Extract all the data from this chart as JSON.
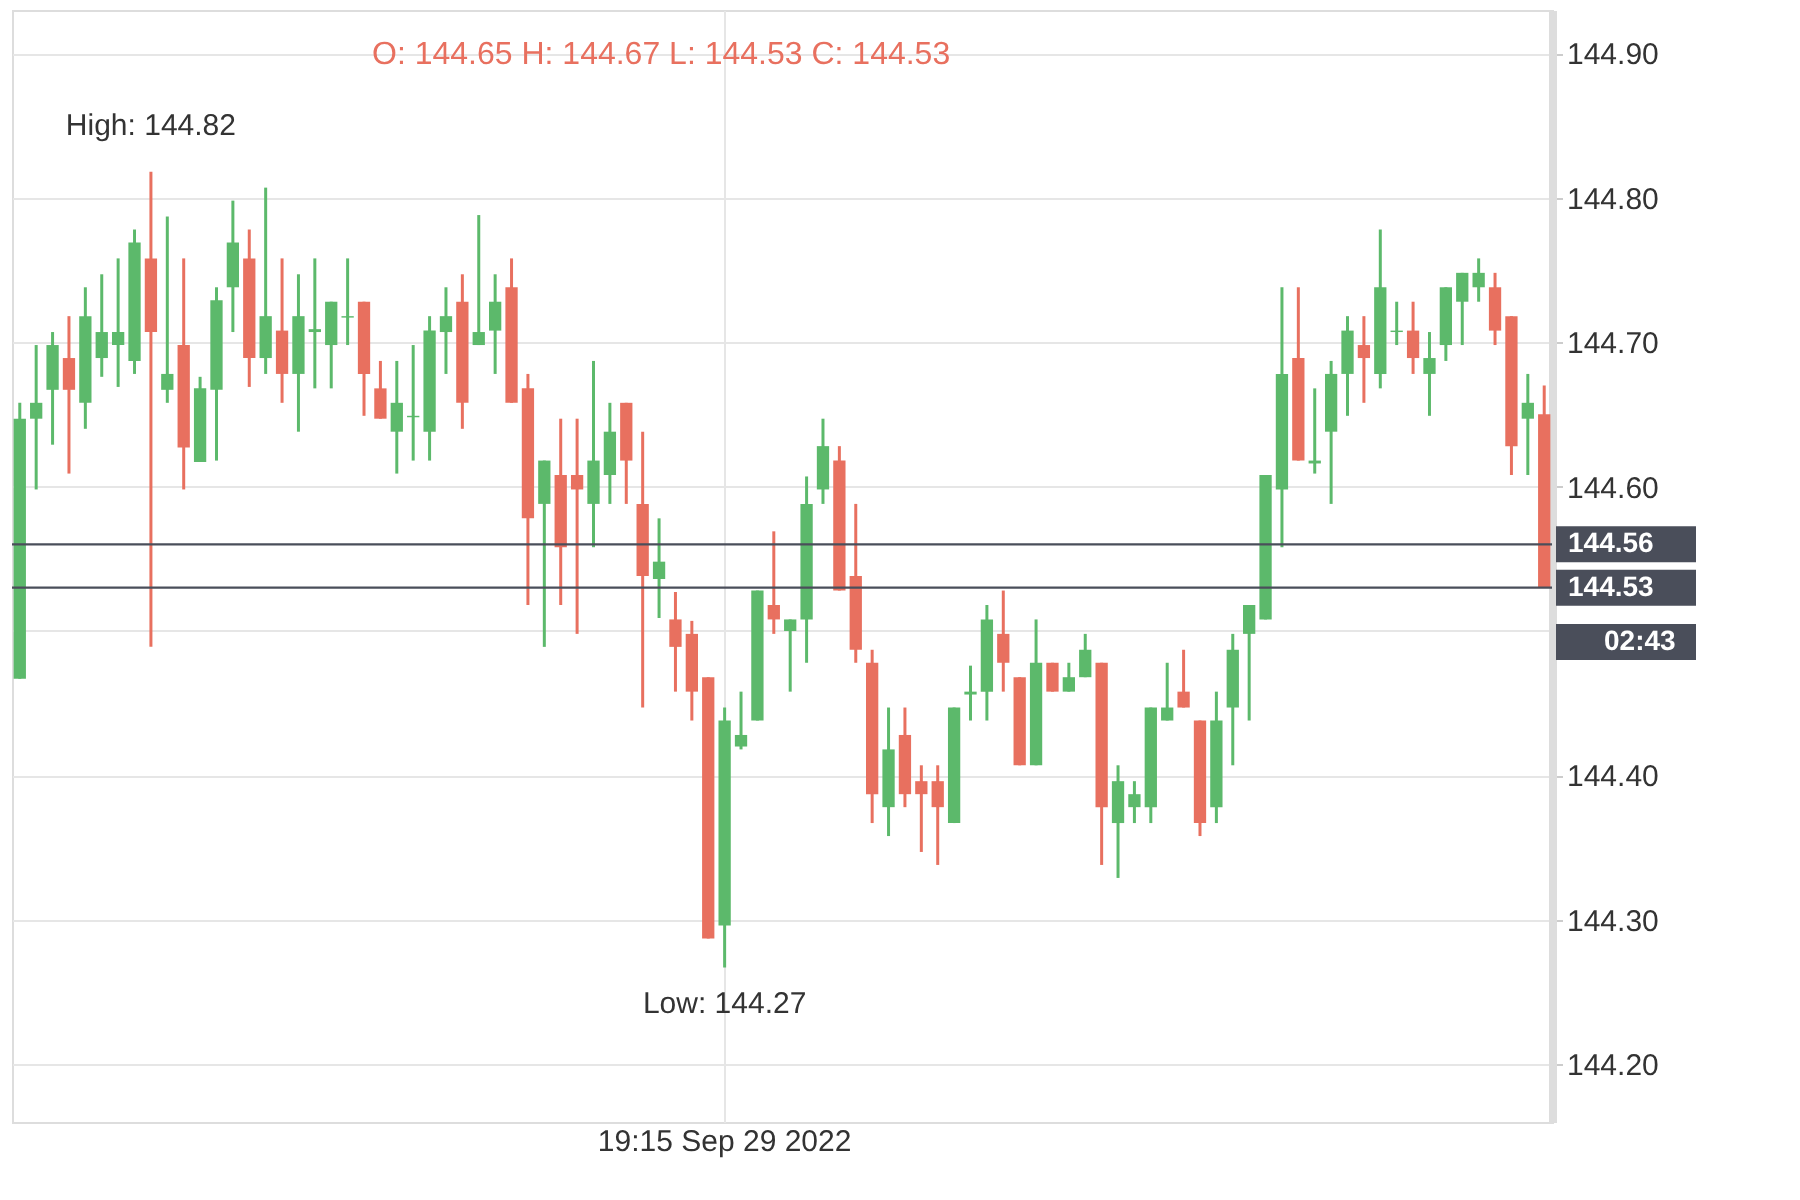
{
  "chart_data": {
    "type": "candlestick",
    "categories": [
      null,
      null,
      null,
      null,
      null,
      null,
      null,
      null,
      null,
      null,
      null,
      null,
      null,
      null,
      null,
      null,
      null,
      null,
      null,
      null,
      null,
      null,
      null,
      null,
      null,
      null,
      null,
      null,
      null,
      null,
      null,
      null,
      null,
      null,
      null,
      null,
      null,
      null,
      null,
      null,
      null,
      null,
      null,
      "19:15 Sep 29 2022",
      null,
      null,
      null,
      null,
      null,
      null,
      null,
      null,
      null,
      null,
      null,
      null,
      null,
      null,
      null,
      null,
      null,
      null,
      null,
      null,
      null,
      null,
      null,
      null,
      null,
      null,
      null,
      null,
      null,
      null,
      null,
      null,
      null,
      null,
      null,
      null,
      null,
      null,
      null,
      null,
      null,
      null,
      null,
      null,
      null,
      null,
      null,
      null,
      null,
      null
    ],
    "ohlc": [
      [
        144.467,
        144.658,
        144.467,
        144.647
      ],
      [
        144.647,
        144.698,
        144.598,
        144.658
      ],
      [
        144.667,
        144.707,
        144.629,
        144.698
      ],
      [
        144.689,
        144.718,
        144.609,
        144.667
      ],
      [
        144.658,
        144.738,
        144.64,
        144.718
      ],
      [
        144.689,
        144.747,
        144.676,
        144.707
      ],
      [
        144.698,
        144.758,
        144.669,
        144.707
      ],
      [
        144.687,
        144.778,
        144.678,
        144.769
      ],
      [
        144.758,
        144.818,
        144.489,
        144.707
      ],
      [
        144.667,
        144.787,
        144.658,
        144.678
      ],
      [
        144.698,
        144.758,
        144.598,
        144.627
      ],
      [
        144.617,
        144.676,
        144.617,
        144.668
      ],
      [
        144.667,
        144.738,
        144.618,
        144.729
      ],
      [
        144.738,
        144.798,
        144.707,
        144.769
      ],
      [
        144.758,
        144.778,
        144.669,
        144.689
      ],
      [
        144.689,
        144.807,
        144.678,
        144.718
      ],
      [
        144.708,
        144.758,
        144.658,
        144.678
      ],
      [
        144.678,
        144.747,
        144.638,
        144.718
      ],
      [
        144.707,
        144.758,
        144.668,
        144.709
      ],
      [
        144.698,
        144.728,
        144.668,
        144.728
      ],
      [
        144.717,
        144.758,
        144.698,
        144.718
      ],
      [
        144.728,
        144.728,
        144.649,
        144.678
      ],
      [
        144.668,
        144.687,
        144.647,
        144.647
      ],
      [
        144.638,
        144.687,
        144.609,
        144.658
      ],
      [
        144.648,
        144.698,
        144.618,
        144.649
      ],
      [
        144.638,
        144.718,
        144.618,
        144.708
      ],
      [
        144.707,
        144.738,
        144.678,
        144.718
      ],
      [
        144.728,
        144.747,
        144.64,
        144.658
      ],
      [
        144.698,
        144.788,
        144.698,
        144.707
      ],
      [
        144.708,
        144.747,
        144.678,
        144.728
      ],
      [
        144.738,
        144.758,
        144.658,
        144.658
      ],
      [
        144.668,
        144.678,
        144.518,
        144.578
      ],
      [
        144.588,
        144.618,
        144.489,
        144.618
      ],
      [
        144.608,
        144.647,
        144.518,
        144.558
      ],
      [
        144.608,
        144.647,
        144.498,
        144.598
      ],
      [
        144.588,
        144.687,
        144.558,
        144.618
      ],
      [
        144.608,
        144.658,
        144.588,
        144.638
      ],
      [
        144.658,
        144.658,
        144.588,
        144.618
      ],
      [
        144.588,
        144.638,
        144.447,
        144.538
      ],
      [
        144.536,
        144.578,
        144.509,
        144.548
      ],
      [
        144.508,
        144.527,
        144.458,
        144.489
      ],
      [
        144.498,
        144.507,
        144.438,
        144.458
      ],
      [
        144.468,
        144.468,
        144.287,
        144.287
      ],
      [
        144.296,
        144.447,
        144.267,
        144.438
      ],
      [
        144.42,
        144.458,
        144.418,
        144.428
      ],
      [
        144.438,
        144.528,
        144.438,
        144.528
      ],
      [
        144.518,
        144.569,
        144.498,
        144.508
      ],
      [
        144.5,
        144.508,
        144.458,
        144.508
      ],
      [
        144.508,
        144.607,
        144.478,
        144.588
      ],
      [
        144.598,
        144.647,
        144.588,
        144.628
      ],
      [
        144.618,
        144.628,
        144.528,
        144.528
      ],
      [
        144.538,
        144.588,
        144.478,
        144.487
      ],
      [
        144.478,
        144.487,
        144.367,
        144.387
      ],
      [
        144.378,
        144.447,
        144.358,
        144.418
      ],
      [
        144.428,
        144.447,
        144.378,
        144.387
      ],
      [
        144.396,
        144.407,
        144.347,
        144.387
      ],
      [
        144.396,
        144.407,
        144.338,
        144.378
      ],
      [
        144.367,
        144.447,
        144.367,
        144.447
      ],
      [
        144.456,
        144.476,
        144.438,
        144.458
      ],
      [
        144.458,
        144.518,
        144.438,
        144.508
      ],
      [
        144.498,
        144.528,
        144.458,
        144.478
      ],
      [
        144.468,
        144.468,
        144.407,
        144.407
      ],
      [
        144.407,
        144.508,
        144.407,
        144.478
      ],
      [
        144.478,
        144.478,
        144.458,
        144.458
      ],
      [
        144.458,
        144.478,
        144.458,
        144.468
      ],
      [
        144.468,
        144.498,
        144.468,
        144.487
      ],
      [
        144.478,
        144.478,
        144.338,
        144.378
      ],
      [
        144.367,
        144.407,
        144.329,
        144.396
      ],
      [
        144.378,
        144.396,
        144.367,
        144.387
      ],
      [
        144.378,
        144.447,
        144.367,
        144.447
      ],
      [
        144.438,
        144.478,
        144.438,
        144.447
      ],
      [
        144.458,
        144.487,
        144.447,
        144.447
      ],
      [
        144.438,
        144.438,
        144.358,
        144.367
      ],
      [
        144.378,
        144.458,
        144.367,
        144.438
      ],
      [
        144.447,
        144.498,
        144.407,
        144.487
      ],
      [
        144.498,
        144.518,
        144.438,
        144.518
      ],
      [
        144.508,
        144.608,
        144.508,
        144.608
      ],
      [
        144.598,
        144.738,
        144.558,
        144.678
      ],
      [
        144.689,
        144.738,
        144.618,
        144.618
      ],
      [
        144.616,
        144.668,
        144.609,
        144.618
      ],
      [
        144.638,
        144.687,
        144.588,
        144.678
      ],
      [
        144.678,
        144.718,
        144.649,
        144.708
      ],
      [
        144.698,
        144.718,
        144.658,
        144.689
      ],
      [
        144.678,
        144.778,
        144.668,
        144.738
      ],
      [
        144.707,
        144.728,
        144.698,
        144.708
      ],
      [
        144.708,
        144.728,
        144.678,
        144.689
      ],
      [
        144.678,
        144.707,
        144.649,
        144.689
      ],
      [
        144.698,
        144.738,
        144.687,
        144.738
      ],
      [
        144.728,
        144.748,
        144.698,
        144.748
      ],
      [
        144.738,
        144.758,
        144.728,
        144.748
      ],
      [
        144.738,
        144.748,
        144.698,
        144.708
      ],
      [
        144.718,
        144.718,
        144.608,
        144.628
      ],
      [
        144.647,
        144.678,
        144.608,
        144.658
      ],
      [
        144.65,
        144.67,
        144.53,
        144.53
      ]
    ],
    "colors": [
      "#5cb96b",
      "#5cb96b",
      "#5cb96b",
      "#e8705f",
      "#5cb96b",
      "#5cb96b",
      "#5cb96b",
      "#5cb96b",
      "#e8705f",
      "#5cb96b",
      "#e8705f",
      "#5cb96b",
      "#5cb96b",
      "#5cb96b",
      "#e8705f",
      "#5cb96b",
      "#e8705f",
      "#5cb96b",
      "#5cb96b",
      "#5cb96b",
      "#5cb96b",
      "#e8705f",
      "#e8705f",
      "#5cb96b",
      "#5cb96b",
      "#5cb96b",
      "#5cb96b",
      "#e8705f",
      "#5cb96b",
      "#5cb96b",
      "#e8705f",
      "#e8705f",
      "#5cb96b",
      "#e8705f",
      "#e8705f",
      "#5cb96b",
      "#5cb96b",
      "#e8705f",
      "#e8705f",
      "#5cb96b",
      "#e8705f",
      "#e8705f",
      "#e8705f",
      "#5cb96b",
      "#5cb96b",
      "#5cb96b",
      "#e8705f",
      "#5cb96b",
      "#5cb96b",
      "#5cb96b",
      "#e8705f",
      "#e8705f",
      "#e8705f",
      "#5cb96b",
      "#e8705f",
      "#e8705f",
      "#e8705f",
      "#5cb96b",
      "#5cb96b",
      "#5cb96b",
      "#e8705f",
      "#e8705f",
      "#5cb96b",
      "#e8705f",
      "#5cb96b",
      "#5cb96b",
      "#e8705f",
      "#5cb96b",
      "#5cb96b",
      "#5cb96b",
      "#5cb96b",
      "#e8705f",
      "#e8705f",
      "#5cb96b",
      "#5cb96b",
      "#5cb96b",
      "#5cb96b",
      "#5cb96b",
      "#e8705f",
      "#5cb96b",
      "#5cb96b",
      "#5cb96b",
      "#e8705f",
      "#5cb96b",
      "#5cb96b",
      "#e8705f",
      "#5cb96b",
      "#5cb96b",
      "#5cb96b",
      "#5cb96b",
      "#e8705f",
      "#e8705f",
      "#5cb96b",
      "#e8705f"
    ],
    "ylim": [
      144.16,
      144.93
    ],
    "yticks": [
      {
        "value": 144.2,
        "label": "144.20"
      },
      {
        "value": 144.3,
        "label": "144.30"
      },
      {
        "value": 144.4,
        "label": "144.40"
      },
      {
        "value": 144.5,
        "label": null
      },
      {
        "value": 144.6,
        "label": "144.60"
      },
      {
        "value": 144.7,
        "label": "144.70"
      },
      {
        "value": 144.8,
        "label": "144.80"
      },
      {
        "value": 144.9,
        "label": "144.90"
      }
    ],
    "grid": true,
    "ref_lines": [
      {
        "axis": "y",
        "value": 144.56,
        "label": "144.56",
        "color": "#4a4e5a"
      },
      {
        "axis": "y",
        "value": 144.53,
        "label": "144.53",
        "color": "#4a4e5a"
      }
    ],
    "annotations": [
      "O: 144.65  H: 144.67  L: 144.53  C: 144.53",
      {
        "text": "High: 144.82",
        "y": 144.82
      },
      {
        "text": "Low: 144.27",
        "y": 144.27
      },
      "02:43"
    ]
  }
}
